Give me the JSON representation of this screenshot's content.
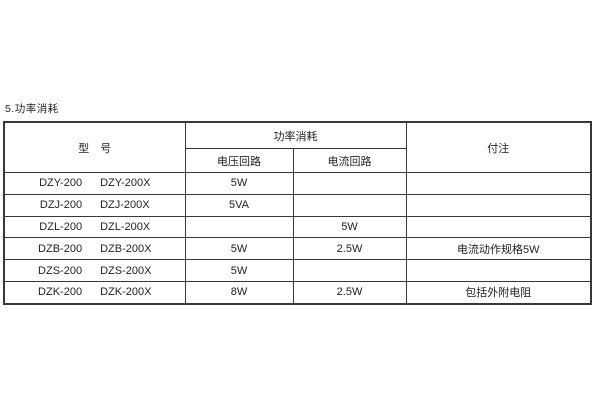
{
  "page": {
    "title": "5.功率消耗"
  },
  "table": {
    "header": {
      "model": "型　号",
      "power": "功率消耗",
      "voltage": "电压回路",
      "current": "电流回路",
      "note": "付注"
    },
    "rows": [
      {
        "model_a": "DZY-200",
        "model_b": "DZY-200X",
        "voltage": "5W",
        "current": "",
        "note": ""
      },
      {
        "model_a": "DZJ-200",
        "model_b": "DZJ-200X",
        "voltage": "5VA",
        "current": "",
        "note": ""
      },
      {
        "model_a": "DZL-200",
        "model_b": "DZL-200X",
        "voltage": "",
        "current": "5W",
        "note": ""
      },
      {
        "model_a": "DZB-200",
        "model_b": "DZB-200X",
        "voltage": "5W",
        "current": "2.5W",
        "note": "电流动作规格5W"
      },
      {
        "model_a": "DZS-200",
        "model_b": "DZS-200X",
        "voltage": "5W",
        "current": "",
        "note": ""
      },
      {
        "model_a": "DZK-200",
        "model_b": "DZK-200X",
        "voltage": "8W",
        "current": "2.5W",
        "note": "包括外附电阻"
      }
    ],
    "colors": {
      "border": "#383838",
      "text": "#222222",
      "background": "#ffffff"
    }
  }
}
